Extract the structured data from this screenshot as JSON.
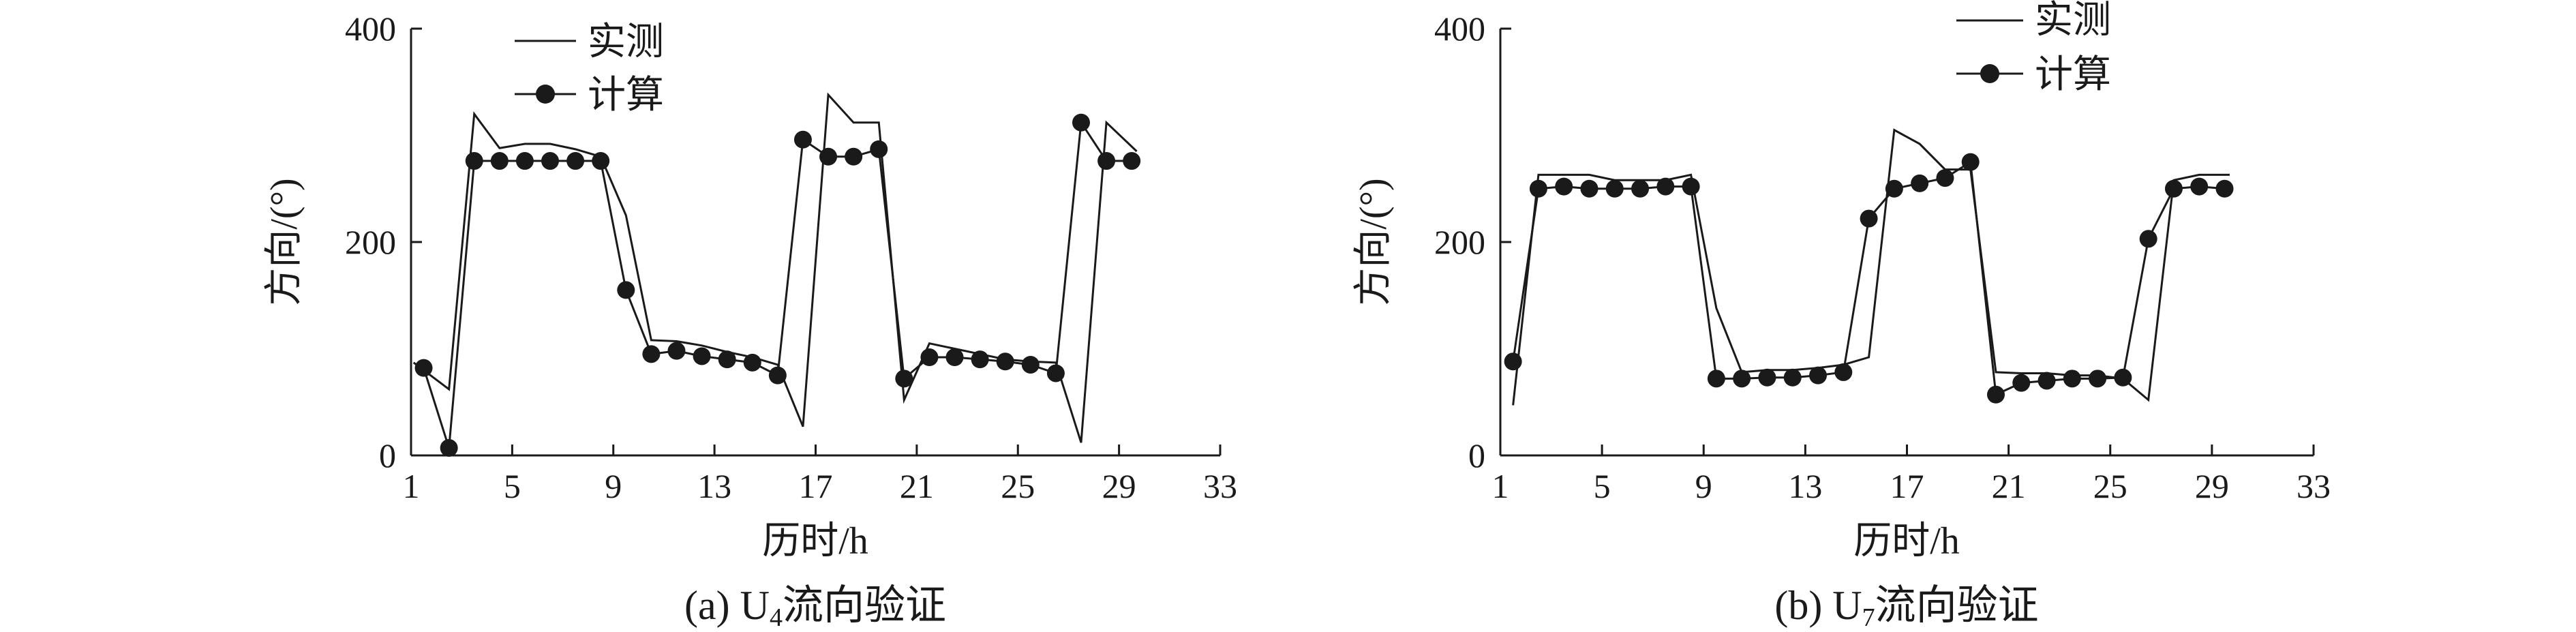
{
  "chart_data": [
    {
      "type": "line",
      "caption_prefix": "(a) U",
      "caption_sub": "4",
      "caption_suffix": "流向验证",
      "xlabel": "历时/h",
      "ylabel": "方向/(°)",
      "xlim": [
        1,
        33
      ],
      "ylim": [
        0,
        400
      ],
      "xticks": [
        "1",
        "5",
        "9",
        "13",
        "17",
        "21",
        "25",
        "29",
        "33"
      ],
      "yticks": [
        "0",
        "200",
        "400"
      ],
      "legend_position": "top-left",
      "series": [
        {
          "name": "实测",
          "style": "line",
          "x": [
            1.1,
            2.5,
            3.5,
            4.5,
            5.5,
            6.5,
            7.5,
            8.5,
            9.5,
            10.5,
            11.5,
            12.5,
            13.5,
            14.5,
            15.5,
            16.5,
            17.5,
            18.5,
            19.5,
            20.5,
            21.5,
            22.5,
            23.5,
            24.5,
            25.5,
            26.5,
            27.5,
            28.5,
            29.7
          ],
          "y": [
            87,
            62,
            320,
            288,
            292,
            292,
            287,
            280,
            225,
            108,
            107,
            103,
            97,
            92,
            85,
            27,
            338,
            312,
            312,
            52,
            105,
            100,
            95,
            90,
            88,
            87,
            12,
            312,
            285
          ]
        },
        {
          "name": "计算",
          "style": "line-marker",
          "x": [
            1.5,
            2.5,
            3.5,
            4.5,
            5.5,
            6.5,
            7.5,
            8.5,
            9.5,
            10.5,
            11.5,
            12.5,
            13.5,
            14.5,
            15.5,
            16.5,
            17.5,
            18.5,
            19.5,
            20.5,
            21.5,
            22.5,
            23.5,
            24.5,
            25.5,
            26.5,
            27.5,
            28.5,
            29.5
          ],
          "y": [
            82,
            7,
            276,
            276,
            276,
            276,
            276,
            276,
            155,
            95,
            98,
            93,
            90,
            87,
            75,
            296,
            280,
            280,
            287,
            72,
            92,
            92,
            90,
            88,
            85,
            77,
            312,
            276,
            276
          ]
        }
      ]
    },
    {
      "type": "line",
      "caption_prefix": "(b) U",
      "caption_sub": "7",
      "caption_suffix": "流向验证",
      "xlabel": "历时/h",
      "ylabel": "方向/(°)",
      "xlim": [
        1,
        33
      ],
      "ylim": [
        0,
        400
      ],
      "xticks": [
        "1",
        "5",
        "9",
        "13",
        "17",
        "21",
        "25",
        "29",
        "33"
      ],
      "yticks": [
        "0",
        "200",
        "400"
      ],
      "legend_position": "top-left",
      "series": [
        {
          "name": "实测",
          "style": "line",
          "x": [
            1.5,
            2.5,
            3.5,
            4.5,
            5.5,
            6.5,
            7.5,
            8.5,
            9.5,
            10.5,
            11.5,
            12.5,
            13.5,
            14.5,
            15.5,
            16.5,
            17.5,
            18.5,
            19.5,
            20.5,
            21.5,
            22.5,
            23.5,
            24.5,
            25.5,
            26.5,
            27.5,
            28.5,
            29.7
          ],
          "y": [
            47,
            263,
            263,
            263,
            258,
            258,
            258,
            263,
            138,
            78,
            80,
            80,
            82,
            85,
            92,
            305,
            292,
            268,
            268,
            78,
            77,
            77,
            75,
            75,
            72,
            52,
            258,
            263,
            263
          ]
        },
        {
          "name": "计算",
          "style": "line-marker",
          "x": [
            1.5,
            2.5,
            3.5,
            4.5,
            5.5,
            6.5,
            7.5,
            8.5,
            9.5,
            10.5,
            11.5,
            12.5,
            13.5,
            14.5,
            15.5,
            16.5,
            17.5,
            18.5,
            19.5,
            20.5,
            21.5,
            22.5,
            23.5,
            24.5,
            25.5,
            26.5,
            27.5,
            28.5,
            29.5
          ],
          "y": [
            88,
            250,
            252,
            250,
            250,
            250,
            252,
            252,
            72,
            72,
            73,
            73,
            75,
            78,
            222,
            250,
            255,
            260,
            275,
            57,
            68,
            70,
            72,
            72,
            73,
            203,
            250,
            252,
            250
          ]
        }
      ]
    }
  ]
}
